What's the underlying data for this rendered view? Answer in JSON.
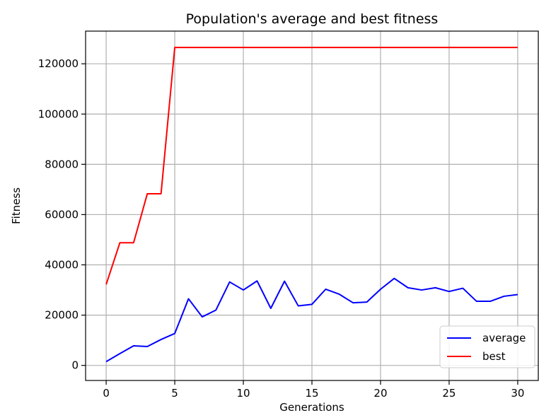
{
  "chart_data": {
    "type": "line",
    "title": "Population's average and best fitness",
    "xlabel": "Generations",
    "ylabel": "Fitness",
    "xlim": [
      -1.5,
      31.5
    ],
    "ylim": [
      -6000,
      133000
    ],
    "xticks": [
      0,
      5,
      10,
      15,
      20,
      25,
      30
    ],
    "yticks": [
      0,
      20000,
      40000,
      60000,
      80000,
      100000,
      120000
    ],
    "grid": true,
    "legend_position": "lower-right",
    "x": [
      0,
      1,
      2,
      3,
      4,
      5,
      6,
      7,
      8,
      9,
      10,
      11,
      12,
      13,
      14,
      15,
      16,
      17,
      18,
      19,
      20,
      21,
      22,
      23,
      24,
      25,
      26,
      27,
      28,
      29,
      30
    ],
    "series": [
      {
        "name": "average",
        "color": "#0000ff",
        "values": [
          1500,
          4700,
          7800,
          7500,
          10300,
          12700,
          26500,
          19300,
          22000,
          33200,
          30000,
          33600,
          22700,
          33500,
          23700,
          24300,
          30300,
          28300,
          24900,
          25200,
          30300,
          34600,
          30900,
          30000,
          30900,
          29400,
          30700,
          25500,
          25500,
          27500,
          28200
        ]
      },
      {
        "name": "best",
        "color": "#ff0000",
        "values": [
          32200,
          48800,
          48800,
          68300,
          68300,
          126500,
          126500,
          126500,
          126500,
          126500,
          126500,
          126500,
          126500,
          126500,
          126500,
          126500,
          126500,
          126500,
          126500,
          126500,
          126500,
          126500,
          126500,
          126500,
          126500,
          126500,
          126500,
          126500,
          126500,
          126500,
          126500
        ]
      }
    ]
  }
}
